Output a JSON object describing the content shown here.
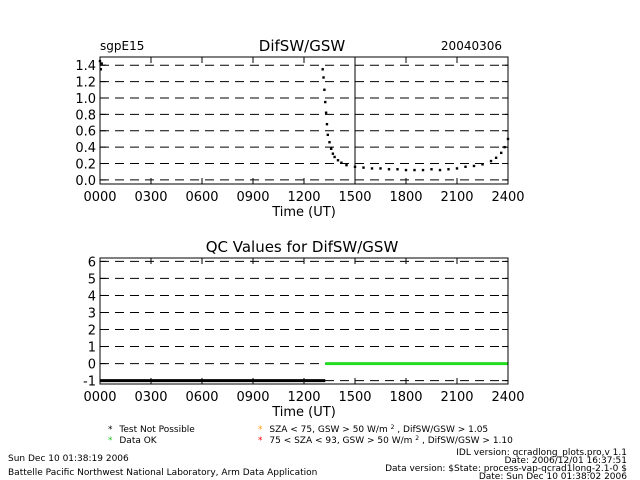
{
  "header": {
    "site": "sgpE15",
    "title": "DifSW/GSW",
    "date": "20040306"
  },
  "chart_data": [
    {
      "type": "scatter",
      "title": "DifSW/GSW",
      "xlabel": "Time (UT)",
      "ylabel": "",
      "xlim": [
        0,
        24
      ],
      "ylim": [
        -0.05,
        1.5
      ],
      "x_tick_values": [
        0,
        3,
        6,
        9,
        12,
        15,
        18,
        21,
        24
      ],
      "x_tick_labels": [
        "0000",
        "0300",
        "0600",
        "0900",
        "1200",
        "1500",
        "1800",
        "2100",
        "2400"
      ],
      "y_tick_values": [
        0.0,
        0.2,
        0.4,
        0.6,
        0.8,
        1.0,
        1.2,
        1.4
      ],
      "y_tick_labels": [
        "0.0",
        "0.2",
        "0.4",
        "0.6",
        "0.8",
        "1.0",
        "1.2",
        "1.4"
      ],
      "vertical_marker_x": 15,
      "grid": "dashed horizontal",
      "series": [
        {
          "color": "#000000",
          "x": [
            0.0,
            0.05,
            0.1,
            13.1,
            13.15,
            13.2,
            13.25,
            13.3,
            13.35,
            13.4,
            13.5,
            13.6,
            13.7,
            13.8,
            14.0,
            14.2,
            14.5,
            15.0,
            15.5,
            16.0,
            16.5,
            17.0,
            17.5,
            18.0,
            18.5,
            19.0,
            19.5,
            20.0,
            20.5,
            21.0,
            21.5,
            22.0,
            22.5,
            23.0,
            23.3,
            23.6,
            23.8,
            24.0
          ],
          "y": [
            1.45,
            1.35,
            1.42,
            1.35,
            1.25,
            1.1,
            0.95,
            0.82,
            0.68,
            0.55,
            0.46,
            0.38,
            0.32,
            0.28,
            0.24,
            0.21,
            0.18,
            0.16,
            0.15,
            0.14,
            0.14,
            0.13,
            0.13,
            0.12,
            0.12,
            0.12,
            0.13,
            0.12,
            0.13,
            0.14,
            0.16,
            0.17,
            0.19,
            0.23,
            0.27,
            0.33,
            0.4,
            0.5
          ]
        }
      ]
    },
    {
      "type": "line",
      "title": "QC Values for DifSW/GSW",
      "xlabel": "Time (UT)",
      "ylabel": "",
      "xlim": [
        0,
        24
      ],
      "ylim": [
        -1.2,
        6.2
      ],
      "x_tick_values": [
        0,
        3,
        6,
        9,
        12,
        15,
        18,
        21,
        24
      ],
      "x_tick_labels": [
        "0000",
        "0300",
        "0600",
        "0900",
        "1200",
        "1500",
        "1800",
        "2100",
        "2400"
      ],
      "y_tick_values": [
        -1,
        0,
        1,
        2,
        3,
        4,
        5,
        6
      ],
      "y_tick_labels": [
        "-1",
        "0",
        "1",
        "2",
        "3",
        "4",
        "5",
        "6"
      ],
      "grid": "dashed horizontal",
      "series": [
        {
          "color": "#000000",
          "x": [
            0,
            13.25
          ],
          "y": [
            -1,
            -1
          ]
        },
        {
          "color": "#22dd22",
          "x": [
            13.25,
            24
          ],
          "y": [
            0,
            0
          ]
        }
      ]
    }
  ],
  "legend": [
    {
      "symbol": "*",
      "color": "#000000",
      "label": "Test Not Possible"
    },
    {
      "symbol": "*",
      "color": "#22cc22",
      "label": "Data OK"
    },
    {
      "symbol": "*",
      "color": "#ff9900",
      "label_pre": "SZA < 75, GSW > 50 W/m",
      "sup": "2",
      "label_post": ", DifSW/GSW > 1.05"
    },
    {
      "symbol": "*",
      "color": "#ff0000",
      "label_pre": "75 < SZA < 93, GSW > 50 W/m",
      "sup": "2",
      "label_post": ", DifSW/GSW > 1.10"
    }
  ],
  "footer": {
    "run_date": "Sun Dec 10 01:38:19 2006",
    "institution": "Battelle Pacific Northwest National Laboratory, Arm Data Application",
    "idl_version": "IDL version: qcradlong_plots.pro,v 1.1",
    "idl_date": "Date: 2006/12/01 16:37:51",
    "data_version": "Data version: $State: process-vap-qcrad1long-2.1-0 $",
    "data_date": "Date: Sun Dec 10 01:38:02 2006"
  }
}
